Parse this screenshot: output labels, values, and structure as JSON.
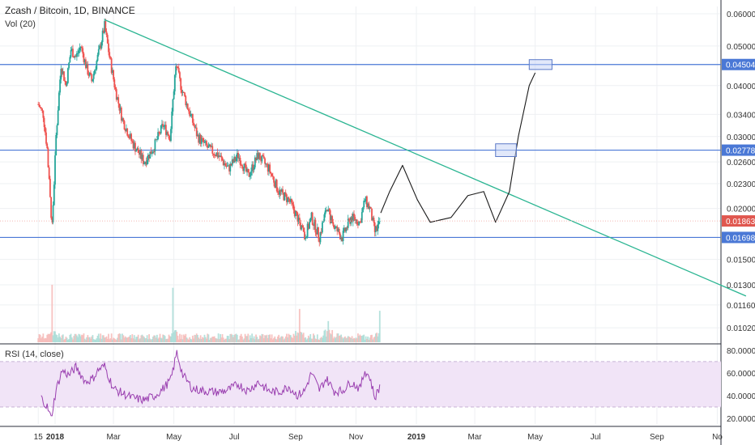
{
  "chart_data": {
    "type": "candlestick",
    "title": "Zcash / Bitcoin, 1D, BINANCE",
    "symbol": "Zcash / Bitcoin",
    "interval": "1D",
    "exchange": "BINANCE",
    "scale": "log",
    "ylim": [
      0.0094,
      0.0625
    ],
    "price_ticks": [
      "0.060000",
      "0.050000",
      "0.040000",
      "0.034000",
      "0.030000",
      "0.026000",
      "0.023000",
      "0.020000",
      "0.015000",
      "0.013000",
      "0.011600",
      "0.010200"
    ],
    "x_ticks": [
      "15",
      "2018",
      "Mar",
      "May",
      "Jul",
      "Sep",
      "Nov",
      "2019",
      "Mar",
      "May",
      "Jul",
      "Sep",
      "No"
    ],
    "current_price": "0.018636",
    "horizontal_levels": [
      {
        "value": 0.045045,
        "label": "0.045045"
      },
      {
        "value": 0.027787,
        "label": "0.027787"
      },
      {
        "value": 0.016981,
        "label": "0.016981"
      }
    ],
    "price_path": [
      [
        "2017-12-15",
        0.036
      ],
      [
        "2017-12-20",
        0.034
      ],
      [
        "2017-12-24",
        0.028
      ],
      [
        "2017-12-27",
        0.021
      ],
      [
        "2017-12-29",
        0.018
      ],
      [
        "2018-01-02",
        0.03
      ],
      [
        "2018-01-07",
        0.045
      ],
      [
        "2018-01-12",
        0.04
      ],
      [
        "2018-01-17",
        0.049
      ],
      [
        "2018-01-22",
        0.047
      ],
      [
        "2018-01-27",
        0.05
      ],
      [
        "2018-02-02",
        0.044
      ],
      [
        "2018-02-07",
        0.041
      ],
      [
        "2018-02-14",
        0.048
      ],
      [
        "2018-02-20",
        0.056
      ],
      [
        "2018-02-25",
        0.047
      ],
      [
        "2018-03-03",
        0.039
      ],
      [
        "2018-03-10",
        0.033
      ],
      [
        "2018-03-20",
        0.029
      ],
      [
        "2018-04-01",
        0.026
      ],
      [
        "2018-04-10",
        0.028
      ],
      [
        "2018-04-20",
        0.032
      ],
      [
        "2018-04-27",
        0.03
      ],
      [
        "2018-05-03",
        0.045
      ],
      [
        "2018-05-08",
        0.04
      ],
      [
        "2018-05-14",
        0.036
      ],
      [
        "2018-05-25",
        0.03
      ],
      [
        "2018-06-05",
        0.028
      ],
      [
        "2018-06-15",
        0.027
      ],
      [
        "2018-06-25",
        0.025
      ],
      [
        "2018-07-05",
        0.027
      ],
      [
        "2018-07-15",
        0.024
      ],
      [
        "2018-07-25",
        0.027
      ],
      [
        "2018-08-05",
        0.025
      ],
      [
        "2018-08-15",
        0.022
      ],
      [
        "2018-08-25",
        0.021
      ],
      [
        "2018-09-03",
        0.019
      ],
      [
        "2018-09-10",
        0.017
      ],
      [
        "2018-09-17",
        0.019
      ],
      [
        "2018-09-25",
        0.017
      ],
      [
        "2018-10-02",
        0.02
      ],
      [
        "2018-10-10",
        0.018
      ],
      [
        "2018-10-18",
        0.017
      ],
      [
        "2018-10-27",
        0.019
      ],
      [
        "2018-11-05",
        0.0185
      ],
      [
        "2018-11-10",
        0.021
      ],
      [
        "2018-11-15",
        0.02
      ],
      [
        "2018-11-20",
        0.0175
      ],
      [
        "2018-11-25",
        0.0186
      ]
    ],
    "volume_peaks": [
      [
        "2017-12-29",
        0.95
      ],
      [
        "2018-04-30",
        0.9
      ],
      [
        "2018-09-05",
        0.55
      ],
      [
        "2018-10-04",
        0.35
      ],
      [
        "2018-11-25",
        0.52
      ]
    ],
    "rsi": {
      "label": "RSI (14, close)",
      "band": [
        30,
        70
      ],
      "ylim": [
        15,
        82
      ],
      "ticks": [
        "80.0000",
        "60.0000",
        "40.0000",
        "20.0000"
      ],
      "values": [
        [
          "2017-12-18",
          38
        ],
        [
          "2017-12-24",
          30
        ],
        [
          "2017-12-28",
          20
        ],
        [
          "2018-01-02",
          45
        ],
        [
          "2018-01-08",
          62
        ],
        [
          "2018-01-15",
          58
        ],
        [
          "2018-01-22",
          65
        ],
        [
          "2018-02-01",
          52
        ],
        [
          "2018-02-08",
          55
        ],
        [
          "2018-02-14",
          63
        ],
        [
          "2018-02-20",
          66
        ],
        [
          "2018-03-01",
          46
        ],
        [
          "2018-03-10",
          42
        ],
        [
          "2018-03-20",
          38
        ],
        [
          "2018-04-01",
          36
        ],
        [
          "2018-04-12",
          40
        ],
        [
          "2018-04-20",
          46
        ],
        [
          "2018-04-28",
          54
        ],
        [
          "2018-05-04",
          78
        ],
        [
          "2018-05-10",
          58
        ],
        [
          "2018-05-20",
          46
        ],
        [
          "2018-06-01",
          44
        ],
        [
          "2018-06-15",
          43
        ],
        [
          "2018-06-25",
          45
        ],
        [
          "2018-07-05",
          50
        ],
        [
          "2018-07-15",
          44
        ],
        [
          "2018-07-25",
          52
        ],
        [
          "2018-08-05",
          44
        ],
        [
          "2018-08-15",
          43
        ],
        [
          "2018-08-25",
          48
        ],
        [
          "2018-09-03",
          40
        ],
        [
          "2018-09-10",
          44
        ],
        [
          "2018-09-17",
          60
        ],
        [
          "2018-09-25",
          45
        ],
        [
          "2018-10-02",
          55
        ],
        [
          "2018-10-10",
          44
        ],
        [
          "2018-10-18",
          44
        ],
        [
          "2018-10-27",
          52
        ],
        [
          "2018-11-05",
          46
        ],
        [
          "2018-11-10",
          62
        ],
        [
          "2018-11-15",
          56
        ],
        [
          "2018-11-20",
          38
        ],
        [
          "2018-11-25",
          48
        ]
      ]
    },
    "drawings": {
      "trendline": {
        "from": [
          "2018-02-20",
          0.058
        ],
        "to": [
          "2019-11-30",
          0.0122
        ],
        "color": "#2bb592"
      },
      "projection_path": [
        [
          "2018-11-26",
          0.0195
        ],
        [
          "2018-12-05",
          0.022
        ],
        [
          "2018-12-18",
          0.0255
        ],
        [
          "2019-01-02",
          0.021
        ],
        [
          "2019-01-15",
          0.0185
        ],
        [
          "2019-02-05",
          0.019
        ],
        [
          "2019-02-22",
          0.0215
        ],
        [
          "2019-03-10",
          0.022
        ],
        [
          "2019-03-22",
          0.0185
        ],
        [
          "2019-04-05",
          0.022
        ],
        [
          "2019-04-14",
          0.03
        ],
        [
          "2019-04-25",
          0.04
        ],
        [
          "2019-05-01",
          0.043
        ]
      ],
      "boxes": [
        {
          "x": [
            "2019-03-22",
            "2019-04-12"
          ],
          "y": [
            0.0268,
            0.0288
          ]
        },
        {
          "x": [
            "2019-04-25",
            "2019-05-18"
          ],
          "y": [
            0.0438,
            0.0463
          ]
        }
      ]
    },
    "colors": {
      "up": "#26a69a",
      "down": "#ef5350",
      "level": "#4a78d6",
      "rsi_line": "#9a3fb0",
      "rsi_band": "#f1e4f7",
      "projection": "#1a1a1a",
      "price_tag": "#e0574f"
    }
  }
}
